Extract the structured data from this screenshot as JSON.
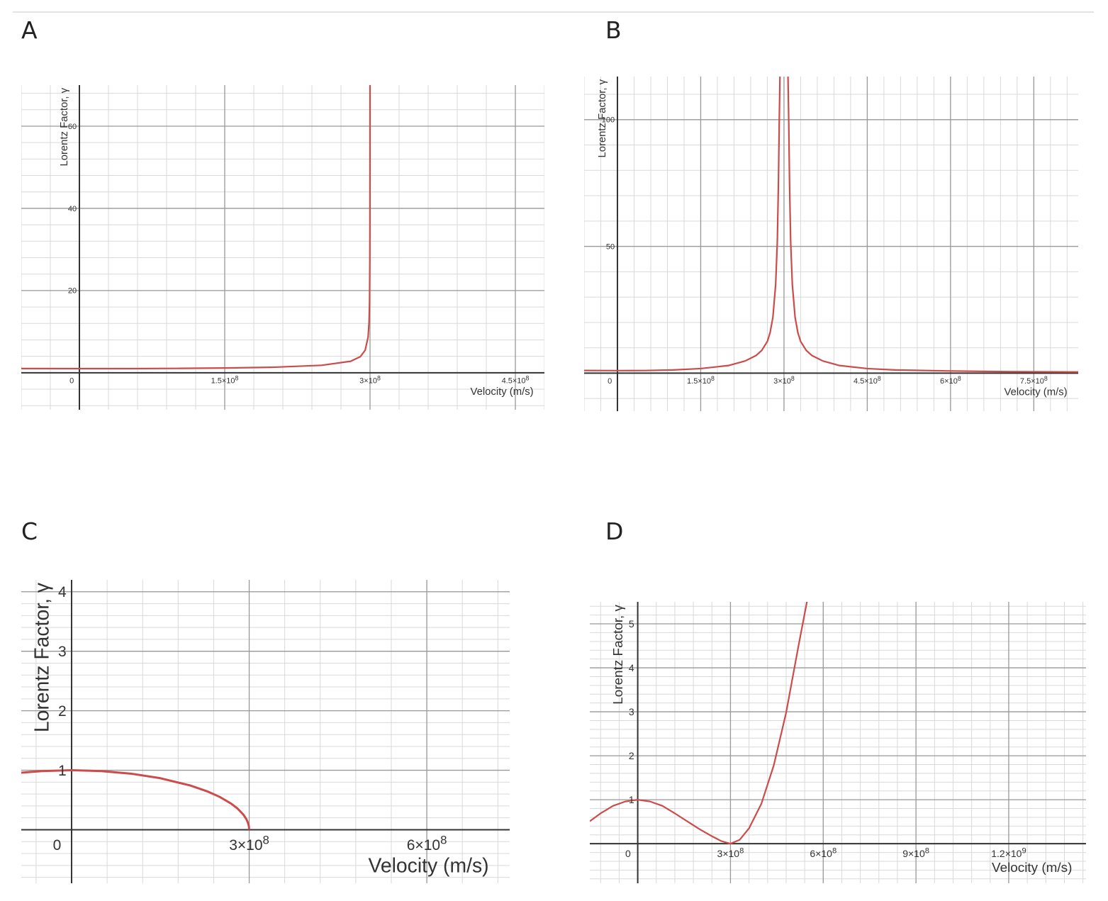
{
  "panels": [
    {
      "letter": "A"
    },
    {
      "letter": "B"
    },
    {
      "letter": "C"
    },
    {
      "letter": "D"
    }
  ],
  "colors": {
    "curve": "#cc4b4b",
    "axis": "#333333",
    "major_grid": "#999999",
    "minor_grid": "#d9d9d9"
  },
  "chart_data": [
    {
      "id": "A",
      "type": "line",
      "xlabel": "Velocity (m/s)",
      "ylabel": "Lorentz Factor, γ",
      "xlim": [
        -60000000.0,
        480000000.0
      ],
      "ylim": [
        -9,
        70
      ],
      "xticks": [
        {
          "v": 0,
          "label": "0"
        },
        {
          "v": 150000000.0,
          "label": "1.5×10^8"
        },
        {
          "v": 300000000.0,
          "label": "3×10^8"
        },
        {
          "v": 450000000.0,
          "label": "4.5×10^8"
        }
      ],
      "yticks": [
        {
          "v": 20,
          "label": "20"
        },
        {
          "v": 40,
          "label": "40"
        },
        {
          "v": 60,
          "label": "60"
        }
      ],
      "series": [
        {
          "points": [
            [
              -60000000.0,
              1.02
            ],
            [
              0,
              1.0
            ],
            [
              50000000.0,
              1.01
            ],
            [
              100000000.0,
              1.06
            ],
            [
              150000000.0,
              1.15
            ],
            [
              200000000.0,
              1.34
            ],
            [
              250000000.0,
              1.81
            ],
            [
              280000000.0,
              2.79
            ],
            [
              290000000.0,
              3.91
            ],
            [
              295000000.0,
              5.5
            ],
            [
              298000000.0,
              8.7
            ],
            [
              299000000.0,
              12.3
            ],
            [
              299500000.0,
              17.3
            ],
            [
              299800000.0,
              27.4
            ],
            [
              299900000.0,
              38.7
            ],
            [
              299950000.0,
              54.8
            ],
            [
              299980000.0,
              72
            ]
          ]
        }
      ]
    },
    {
      "id": "B",
      "type": "line",
      "xlabel": "Velocity (m/s)",
      "ylabel": "Lorentz Factor, γ",
      "xlim": [
        -60000000.0,
        830000000.0
      ],
      "ylim": [
        -15,
        117
      ],
      "xticks": [
        {
          "v": 0,
          "label": "0"
        },
        {
          "v": 150000000.0,
          "label": "1.5×10^8"
        },
        {
          "v": 300000000.0,
          "label": "3×10^8"
        },
        {
          "v": 450000000.0,
          "label": "4.5×10^8"
        },
        {
          "v": 600000000.0,
          "label": "6×10^8"
        },
        {
          "v": 750000000.0,
          "label": "7.5×10^8"
        }
      ],
      "yticks": [
        {
          "v": 50,
          "label": "50"
        },
        {
          "v": 100,
          "label": "100"
        }
      ],
      "series": [
        {
          "points": [
            [
              -60000000.0,
              1.04
            ],
            [
              0,
              1.0
            ],
            [
              50000000.0,
              1.03
            ],
            [
              100000000.0,
              1.25
            ],
            [
              150000000.0,
              1.8
            ],
            [
              200000000.0,
              3.0
            ],
            [
              230000000.0,
              4.8
            ],
            [
              250000000.0,
              7.0
            ],
            [
              260000000.0,
              9.0
            ],
            [
              270000000.0,
              12.5
            ],
            [
              275000000.0,
              16
            ],
            [
              280000000.0,
              22
            ],
            [
              285000000.0,
              35
            ],
            [
              288000000.0,
              52
            ],
            [
              290000000.0,
              75
            ],
            [
              291500000.0,
              100
            ],
            [
              293000000.0,
              120
            ]
          ]
        },
        {
          "points": [
            [
              307000000.0,
              120
            ],
            [
              308500000.0,
              100
            ],
            [
              310000000.0,
              75
            ],
            [
              312000000.0,
              52
            ],
            [
              315000000.0,
              35
            ],
            [
              320000000.0,
              22
            ],
            [
              325000000.0,
              16
            ],
            [
              330000000.0,
              12.5
            ],
            [
              340000000.0,
              9.0
            ],
            [
              350000000.0,
              7.0
            ],
            [
              370000000.0,
              4.8
            ],
            [
              400000000.0,
              3.0
            ],
            [
              450000000.0,
              1.8
            ],
            [
              500000000.0,
              1.25
            ],
            [
              600000000.0,
              0.85
            ],
            [
              700000000.0,
              0.6
            ],
            [
              830000000.0,
              0.45
            ]
          ]
        }
      ]
    },
    {
      "id": "C",
      "type": "line",
      "xlabel": "Velocity (m/s)",
      "ylabel": "Lorentz Factor, γ",
      "xlim": [
        -85000000.0,
        740000000.0
      ],
      "ylim": [
        -0.9,
        4.2
      ],
      "xticks": [
        {
          "v": 0,
          "label": "0"
        },
        {
          "v": 300000000.0,
          "label": "3×10^8"
        },
        {
          "v": 600000000.0,
          "label": "6×10^8"
        }
      ],
      "yticks": [
        {
          "v": 1,
          "label": "1"
        },
        {
          "v": 2,
          "label": "2"
        },
        {
          "v": 3,
          "label": "3"
        },
        {
          "v": 4,
          "label": "4"
        }
      ],
      "series": [
        {
          "points": [
            [
              -85000000.0,
              0.959
            ],
            [
              -50000000.0,
              0.986
            ],
            [
              0,
              1.0
            ],
            [
              50000000.0,
              0.986
            ],
            [
              100000000.0,
              0.943
            ],
            [
              150000000.0,
              0.866
            ],
            [
              200000000.0,
              0.745
            ],
            [
              230000000.0,
              0.642
            ],
            [
              250000000.0,
              0.553
            ],
            [
              270000000.0,
              0.436
            ],
            [
              280000000.0,
              0.359
            ],
            [
              290000000.0,
              0.256
            ],
            [
              295000000.0,
              0.182
            ],
            [
              298000000.0,
              0.115
            ],
            [
              299500000.0,
              0.058
            ],
            [
              300000000.0,
              0
            ]
          ]
        }
      ]
    },
    {
      "id": "D",
      "type": "line",
      "xlabel": "Velocity (m/s)",
      "ylabel": "Lorentz Factor, γ",
      "xlim": [
        -155000000.0,
        1450000000.0
      ],
      "ylim": [
        -0.9,
        5.5
      ],
      "xticks": [
        {
          "v": 0,
          "label": "0"
        },
        {
          "v": 300000000.0,
          "label": "3×10^8"
        },
        {
          "v": 600000000.0,
          "label": "6×10^8"
        },
        {
          "v": 900000000.0,
          "label": "9×10^8"
        },
        {
          "v": 1200000000.0,
          "label": "1.2×10^9"
        }
      ],
      "yticks": [
        {
          "v": 1,
          "label": "1"
        },
        {
          "v": 2,
          "label": "2"
        },
        {
          "v": 3,
          "label": "3"
        },
        {
          "v": 4,
          "label": "4"
        },
        {
          "v": 5,
          "label": "5"
        }
      ],
      "series": [
        {
          "points": [
            [
              -155000000.0,
              0.51
            ],
            [
              -120000000.0,
              0.69
            ],
            [
              -80000000.0,
              0.86
            ],
            [
              -40000000.0,
              0.96
            ],
            [
              0,
              1.0
            ],
            [
              40000000.0,
              0.96
            ],
            [
              80000000.0,
              0.86
            ],
            [
              120000000.0,
              0.69
            ],
            [
              160000000.0,
              0.51
            ],
            [
              200000000.0,
              0.33
            ],
            [
              240000000.0,
              0.17
            ],
            [
              270000000.0,
              0.06
            ],
            [
              300000000.0,
              0.0
            ],
            [
              330000000.0,
              0.09
            ],
            [
              360000000.0,
              0.35
            ],
            [
              400000000.0,
              0.91
            ],
            [
              440000000.0,
              1.78
            ],
            [
              480000000.0,
              2.98
            ],
            [
              520000000.0,
              4.5
            ],
            [
              550000000.0,
              5.6
            ]
          ]
        }
      ]
    }
  ]
}
